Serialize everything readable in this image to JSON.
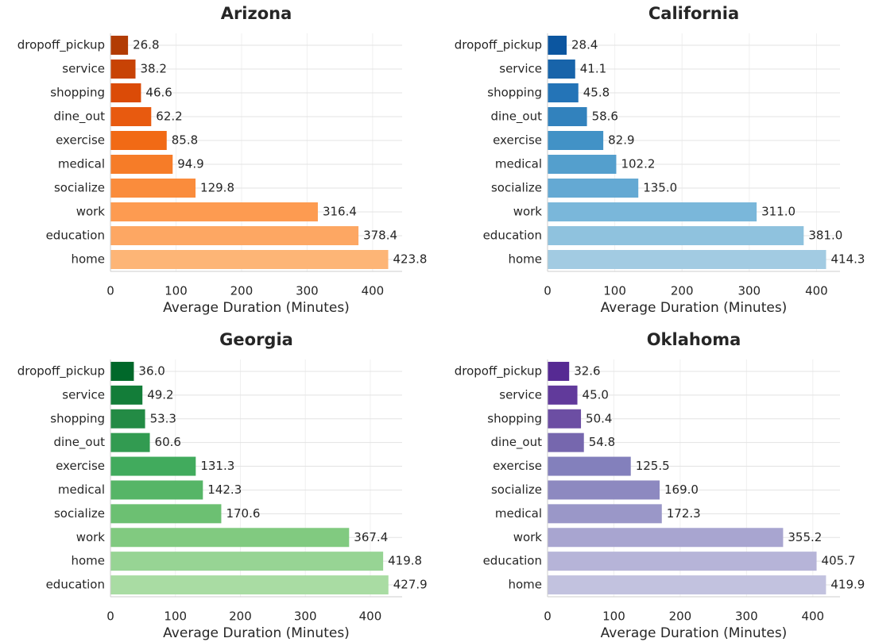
{
  "chart_data": [
    {
      "type": "barh",
      "title": "Arizona",
      "xlabel": "Average Duration (Minutes)",
      "categories": [
        "dropoff_pickup",
        "service",
        "shopping",
        "dine_out",
        "exercise",
        "medical",
        "socialize",
        "work",
        "education",
        "home"
      ],
      "values": [
        26.8,
        38.2,
        46.6,
        62.2,
        85.8,
        94.9,
        129.8,
        316.4,
        378.4,
        423.8
      ],
      "value_labels": [
        "26.8",
        "38.2",
        "46.6",
        "62.2",
        "85.8",
        "94.9",
        "129.8",
        "316.4",
        "378.4",
        "423.8"
      ],
      "colors": [
        "#b23c04",
        "#c84305",
        "#db4b07",
        "#e85a0f",
        "#f16a15",
        "#f67c28",
        "#fa8c3c",
        "#fd9b51",
        "#fda763",
        "#fdb576"
      ],
      "xlim": [
        0,
        445
      ],
      "xticks": [
        0,
        100,
        200,
        300,
        400
      ],
      "grid": true
    },
    {
      "type": "barh",
      "title": "California",
      "xlabel": "Average Duration (Minutes)",
      "categories": [
        "dropoff_pickup",
        "service",
        "shopping",
        "dine_out",
        "exercise",
        "medical",
        "socialize",
        "work",
        "education",
        "home"
      ],
      "values": [
        28.4,
        41.1,
        45.8,
        58.6,
        82.9,
        102.2,
        135.0,
        311.0,
        381.0,
        414.3
      ],
      "value_labels": [
        "28.4",
        "41.1",
        "45.8",
        "58.6",
        "82.9",
        "102.2",
        "135.0",
        "311.0",
        "381.0",
        "414.3"
      ],
      "colors": [
        "#0c56a0",
        "#1864aa",
        "#2474b7",
        "#3282bd",
        "#4292c6",
        "#549fcd",
        "#64a9d3",
        "#7ab7da",
        "#8fc2de",
        "#a2cbe2"
      ],
      "xlim": [
        0,
        435
      ],
      "xticks": [
        0,
        100,
        200,
        300,
        400
      ],
      "grid": true
    },
    {
      "type": "barh",
      "title": "Georgia",
      "xlabel": "Average Duration (Minutes)",
      "categories": [
        "dropoff_pickup",
        "service",
        "shopping",
        "dine_out",
        "exercise",
        "medical",
        "socialize",
        "work",
        "home",
        "education"
      ],
      "values": [
        36.0,
        49.2,
        53.3,
        60.6,
        131.3,
        142.3,
        170.6,
        367.4,
        419.8,
        427.9
      ],
      "value_labels": [
        "36.0",
        "49.2",
        "53.3",
        "60.6",
        "131.3",
        "142.3",
        "170.6",
        "367.4",
        "419.8",
        "427.9"
      ],
      "colors": [
        "#00682a",
        "#137d39",
        "#238b45",
        "#329b51",
        "#41ab5d",
        "#56b567",
        "#6cc072",
        "#81ca80",
        "#97d494",
        "#a9dca3"
      ],
      "xlim": [
        0,
        449
      ],
      "xticks": [
        0,
        100,
        200,
        300,
        400
      ],
      "grid": true
    },
    {
      "type": "barh",
      "title": "Oklahoma",
      "xlabel": "Average Duration (Minutes)",
      "categories": [
        "dropoff_pickup",
        "service",
        "shopping",
        "dine_out",
        "exercise",
        "socialize",
        "medical",
        "work",
        "education",
        "home"
      ],
      "values": [
        32.6,
        45.0,
        50.4,
        54.8,
        125.5,
        169.0,
        172.3,
        355.2,
        405.7,
        419.9
      ],
      "value_labels": [
        "32.6",
        "45.0",
        "50.4",
        "54.8",
        "125.5",
        "169.0",
        "172.3",
        "355.2",
        "405.7",
        "419.9"
      ],
      "colors": [
        "#562a93",
        "#613a9b",
        "#6c4ea3",
        "#7667ae",
        "#8380bc",
        "#8d89c0",
        "#9a97c8",
        "#a8a5d0",
        "#b6b4d8",
        "#c2c2df"
      ],
      "xlim": [
        0,
        441
      ],
      "xticks": [
        0,
        100,
        200,
        300,
        400
      ],
      "grid": true
    }
  ]
}
